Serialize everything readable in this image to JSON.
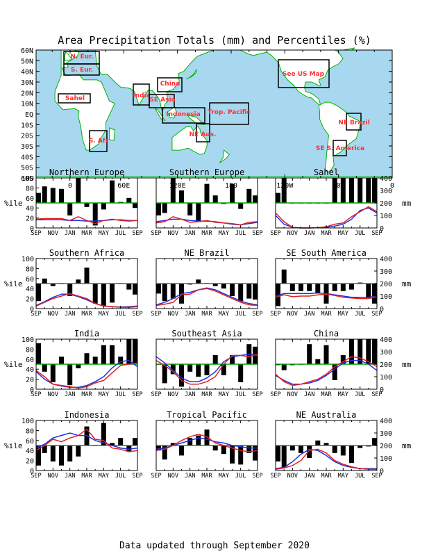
{
  "title": "Area Precipitation Totals (mm) and Percentiles (%)",
  "footer": "Data updated through September 2020",
  "map": {
    "lat_labels": [
      "60N",
      "50N",
      "40N",
      "30N",
      "20N",
      "10N",
      "EQ",
      "10S",
      "20S",
      "30S",
      "40S",
      "50S",
      "60S"
    ],
    "lon_labels": [
      "0",
      "60E",
      "120E",
      "180",
      "120W",
      "60W",
      "0"
    ],
    "colors": {
      "ocean": "#a8d8f0",
      "land": "#ffffff",
      "coast": "#00b000",
      "region": "#ff3030",
      "box": "#000000"
    },
    "regions": [
      {
        "label": "N. Eur."
      },
      {
        "label": "S. Eur."
      },
      {
        "label": "Sahel"
      },
      {
        "label": "S. Afr"
      },
      {
        "label": "India"
      },
      {
        "label": "SE Asia"
      },
      {
        "label": "China"
      },
      {
        "label": "Indonesia"
      },
      {
        "label": "Trop. Pacific"
      },
      {
        "label": "NE Aus."
      },
      {
        "label": "See US Map"
      },
      {
        "label": "NE Brazil"
      },
      {
        "label": "SE S. America"
      }
    ]
  },
  "axes": {
    "months": [
      "SEP",
      "NOV",
      "JAN",
      "MAR",
      "MAY",
      "JUL",
      "SEP"
    ],
    "pct_ticks": [
      "0",
      "20",
      "40",
      "60",
      "80",
      "100"
    ],
    "mm_ticks": [
      "0",
      "100",
      "200",
      "300",
      "400"
    ],
    "pct_label": "%ile",
    "mm_label": "mm"
  },
  "chart_data": [
    {
      "type": "bar",
      "title": "Northern Europe",
      "percentiles": [
        70,
        83,
        80,
        78,
        25,
        100,
        42,
        5,
        37,
        95,
        52,
        60,
        40
      ],
      "precip_mm": [
        70,
        75,
        75,
        75,
        60,
        90,
        60,
        35,
        60,
        70,
        60,
        55,
        60
      ],
      "normal_mm": [
        65,
        65,
        65,
        65,
        60,
        60,
        55,
        55,
        60,
        65,
        65,
        60,
        60
      ]
    },
    {
      "type": "bar",
      "title": "Southern Europe",
      "percentiles": [
        25,
        30,
        100,
        75,
        25,
        12,
        88,
        65,
        48,
        88,
        38,
        78,
        65
      ],
      "precip_mm": [
        40,
        50,
        90,
        70,
        45,
        50,
        60,
        45,
        40,
        35,
        25,
        45,
        50
      ],
      "normal_mm": [
        50,
        60,
        70,
        70,
        60,
        55,
        55,
        50,
        40,
        30,
        25,
        35,
        45
      ]
    },
    {
      "type": "bar",
      "title": "Sahel",
      "percentiles": [
        70,
        100,
        50,
        50,
        50,
        50,
        50,
        100,
        100,
        100,
        100,
        100,
        100
      ],
      "precip_mm": [
        120,
        50,
        5,
        0,
        0,
        2,
        10,
        30,
        40,
        90,
        130,
        170,
        130
      ],
      "normal_mm": [
        100,
        30,
        5,
        0,
        0,
        2,
        5,
        15,
        30,
        70,
        140,
        160,
        120
      ]
    },
    {
      "type": "bar",
      "title": "Southern Africa",
      "percentiles": [
        15,
        60,
        45,
        50,
        25,
        58,
        82,
        10,
        5,
        12,
        50,
        38,
        28
      ],
      "precip_mm": [
        20,
        50,
        80,
        100,
        120,
        100,
        80,
        40,
        20,
        15,
        10,
        10,
        15
      ],
      "normal_mm": [
        25,
        55,
        90,
        115,
        115,
        95,
        70,
        40,
        20,
        15,
        12,
        15,
        20
      ]
    },
    {
      "type": "bar",
      "title": "NE Brazil",
      "percentiles": [
        30,
        15,
        20,
        10,
        48,
        58,
        50,
        45,
        40,
        25,
        15,
        20,
        18
      ],
      "precip_mm": [
        25,
        35,
        50,
        110,
        115,
        150,
        160,
        140,
        110,
        80,
        50,
        30,
        25
      ],
      "normal_mm": [
        30,
        50,
        80,
        120,
        130,
        150,
        165,
        150,
        120,
        90,
        60,
        40,
        30
      ]
    },
    {
      "type": "bar",
      "title": "SE South America",
      "percentiles": [
        5,
        78,
        35,
        35,
        35,
        30,
        10,
        35,
        35,
        38,
        52,
        20,
        10
      ],
      "precip_mm": [
        90,
        110,
        95,
        100,
        100,
        110,
        115,
        105,
        90,
        85,
        80,
        80,
        95
      ],
      "normal_mm": [
        100,
        120,
        120,
        120,
        120,
        125,
        120,
        110,
        100,
        90,
        90,
        90,
        100
      ]
    },
    {
      "type": "bar",
      "title": "India",
      "percentiles": [
        92,
        35,
        14,
        65,
        8,
        42,
        72,
        65,
        88,
        88,
        65,
        100,
        100
      ],
      "precip_mm": [
        150,
        100,
        40,
        30,
        20,
        10,
        20,
        50,
        70,
        130,
        190,
        200,
        210
      ],
      "normal_mm": [
        140,
        80,
        40,
        25,
        15,
        15,
        30,
        60,
        100,
        170,
        220,
        230,
        180
      ]
    },
    {
      "type": "bar",
      "title": "Southeast Asia",
      "percentiles": [
        50,
        12,
        30,
        5,
        35,
        25,
        28,
        68,
        28,
        68,
        14,
        90,
        85
      ],
      "precip_mm": [
        230,
        190,
        140,
        70,
        40,
        40,
        60,
        100,
        200,
        270,
        270,
        260,
        280
      ],
      "normal_mm": [
        260,
        210,
        150,
        90,
        60,
        60,
        90,
        140,
        220,
        260,
        270,
        280,
        270
      ]
    },
    {
      "type": "bar",
      "title": "China",
      "percentiles": [
        48,
        38,
        48,
        50,
        90,
        60,
        88,
        18,
        68,
        100,
        100,
        100,
        100
      ],
      "precip_mm": [
        120,
        60,
        30,
        40,
        60,
        80,
        120,
        180,
        220,
        260,
        250,
        220,
        180
      ],
      "normal_mm": [
        110,
        70,
        40,
        40,
        50,
        70,
        110,
        160,
        210,
        230,
        230,
        200,
        150
      ]
    },
    {
      "type": "bar",
      "title": "Indonesia",
      "percentiles": [
        10,
        35,
        18,
        10,
        18,
        28,
        88,
        50,
        95,
        55,
        65,
        38,
        65
      ],
      "precip_mm": [
        160,
        200,
        250,
        230,
        260,
        280,
        330,
        250,
        240,
        180,
        170,
        150,
        160
      ],
      "normal_mm": [
        180,
        210,
        260,
        280,
        300,
        280,
        280,
        240,
        220,
        200,
        180,
        170,
        180
      ]
    },
    {
      "type": "bar",
      "title": "Tropical Pacific",
      "percentiles": [
        40,
        22,
        55,
        30,
        65,
        70,
        82,
        40,
        33,
        14,
        12,
        35,
        20
      ],
      "precip_mm": [
        160,
        170,
        200,
        240,
        270,
        290,
        270,
        220,
        200,
        180,
        160,
        150,
        160
      ],
      "normal_mm": [
        170,
        180,
        200,
        220,
        240,
        260,
        250,
        230,
        220,
        200,
        190,
        180,
        180
      ]
    },
    {
      "type": "bar",
      "title": "NE Australia",
      "percentiles": [
        18,
        5,
        40,
        35,
        25,
        60,
        55,
        35,
        30,
        15,
        45,
        48,
        65
      ],
      "precip_mm": [
        10,
        20,
        40,
        80,
        160,
        170,
        140,
        80,
        50,
        30,
        15,
        10,
        10
      ],
      "normal_mm": [
        15,
        25,
        70,
        130,
        170,
        160,
        120,
        70,
        40,
        25,
        15,
        15,
        15
      ]
    }
  ]
}
